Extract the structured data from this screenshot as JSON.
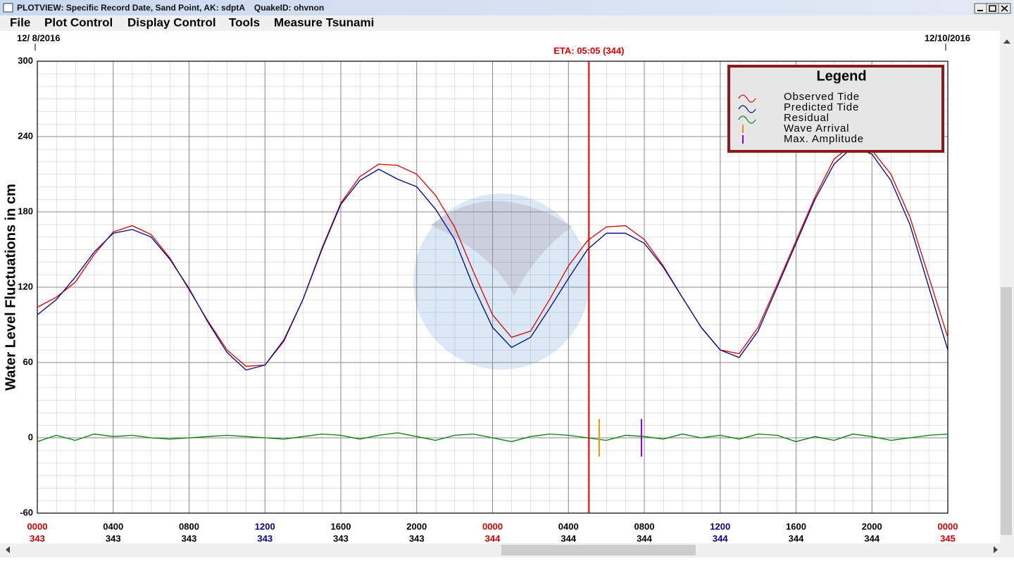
{
  "window": {
    "title": "PLOTVIEW: Specific Record Date, Sand Point, AK: sdptA    QuakeID: ohvnon"
  },
  "menu": [
    "File",
    "Plot Control",
    "Display Control",
    "Tools",
    "Measure Tsunami"
  ],
  "chart_data": {
    "type": "line",
    "start_date": "12/ 8/2016",
    "end_date": "12/10/2016",
    "y_label": "Water Level Fluctuations in cm",
    "x": [
      0,
      1,
      2,
      3,
      4,
      5,
      6,
      7,
      8,
      9,
      10,
      11,
      12,
      13,
      14,
      15,
      16,
      17,
      18,
      19,
      20,
      21,
      22,
      23,
      24,
      25,
      26,
      27,
      28,
      29,
      30,
      31,
      32,
      33,
      34,
      35,
      36,
      37,
      38,
      39,
      40,
      41,
      42,
      43,
      44,
      45,
      46,
      47,
      48
    ],
    "xlim": [
      0,
      48
    ],
    "xticks": [
      {
        "value": 0,
        "label": "0000"
      },
      {
        "value": 4,
        "label": "0400"
      },
      {
        "value": 8,
        "label": "0800"
      },
      {
        "value": 12,
        "label": "1200"
      },
      {
        "value": 16,
        "label": "1600"
      },
      {
        "value": 20,
        "label": "2000"
      },
      {
        "value": 24,
        "label": "0000"
      },
      {
        "value": 28,
        "label": "0400"
      },
      {
        "value": 32,
        "label": "0800"
      },
      {
        "value": 36,
        "label": "1200"
      },
      {
        "value": 40,
        "label": "1600"
      },
      {
        "value": 44,
        "label": "2000"
      },
      {
        "value": 48,
        "label": "0000"
      }
    ],
    "day_labels": [
      "343",
      "343",
      "343",
      "343",
      "343",
      "343",
      "344",
      "344",
      "344",
      "344",
      "344",
      "344",
      "345"
    ],
    "tick_label_colors": [
      "#d00000",
      "#000000",
      "#000000",
      "#00008b",
      "#000000",
      "#000000",
      "#d00000",
      "#000000",
      "#000000",
      "#00008b",
      "#000000",
      "#000000",
      "#d00000"
    ],
    "ylim": [
      -60,
      300
    ],
    "yticks": [
      -60,
      0,
      60,
      120,
      180,
      240,
      300
    ],
    "grid": true,
    "series": [
      {
        "name": "Observed Tide",
        "color": "#e00000",
        "values": [
          104,
          112,
          124,
          146,
          164,
          169,
          162,
          143,
          118,
          93,
          70,
          57,
          58,
          77,
          110,
          151,
          187,
          208,
          218,
          217,
          210,
          193,
          168,
          132,
          98,
          80,
          85,
          110,
          137,
          157,
          168,
          169,
          158,
          137,
          112,
          88,
          70,
          67,
          88,
          122,
          157,
          192,
          222,
          234,
          229,
          210,
          176,
          128,
          80
        ]
      },
      {
        "name": "Predicted Tide",
        "color": "#000090",
        "values": [
          98,
          110,
          128,
          148,
          163,
          166,
          160,
          142,
          119,
          92,
          68,
          54,
          58,
          78,
          110,
          150,
          186,
          205,
          214,
          206,
          200,
          182,
          158,
          120,
          88,
          72,
          80,
          103,
          127,
          150,
          163,
          163,
          155,
          136,
          112,
          88,
          70,
          64,
          85,
          120,
          155,
          190,
          218,
          232,
          226,
          205,
          170,
          120,
          70
        ]
      },
      {
        "name": "Residual",
        "color": "#008000",
        "values": [
          -3,
          2,
          -2,
          3,
          1,
          2,
          0,
          -1,
          0,
          1,
          2,
          1,
          0,
          -1,
          1,
          3,
          2,
          -1,
          2,
          4,
          1,
          -2,
          2,
          3,
          0,
          -3,
          1,
          3,
          2,
          0,
          -2,
          2,
          1,
          -1,
          3,
          0,
          2,
          -1,
          3,
          2,
          -3,
          1,
          -2,
          3,
          1,
          -2,
          0,
          2,
          3
        ]
      }
    ],
    "eta": {
      "label": "ETA: 05:05 (344)",
      "x": 29.08,
      "color": "#e00000"
    },
    "wave_arrival": {
      "name": "Wave Arrival",
      "x": 29.62,
      "low": -15,
      "high": 15,
      "color": "#ff8c00"
    },
    "max_amplitude": {
      "name": "Max. Amplitude",
      "x": 31.85,
      "low": -15,
      "high": 15,
      "color": "#9400d3"
    },
    "legend": {
      "title": "Legend",
      "position": "upper right"
    }
  }
}
